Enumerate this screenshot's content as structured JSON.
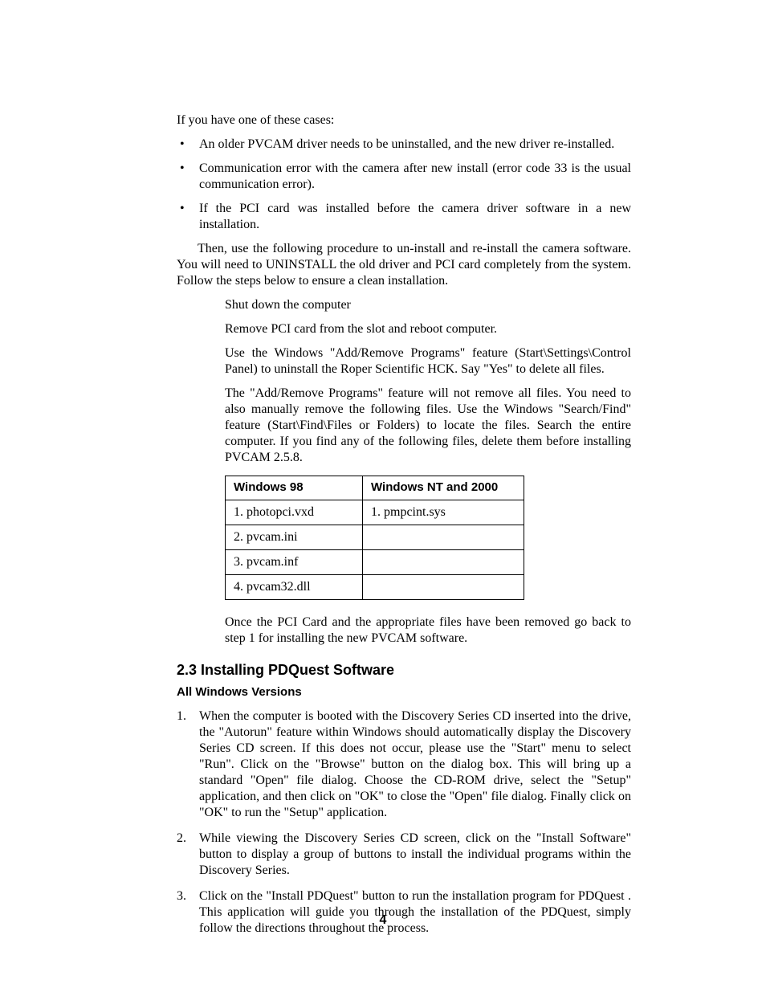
{
  "intro": "If you have one of these cases:",
  "cases": [
    "An older PVCAM driver needs to be uninstalled, and the new driver re-installed.",
    "Communication error with the camera after new install (error code 33 is the usual communication error).",
    "If the PCI card was installed before the camera driver software in a new installation."
  ],
  "then_para": "Then, use the following procedure to un-install and re-install the camera software. You will need to UNINSTALL the old driver and PCI card completely from the system. Follow the steps below to ensure a clean installation.",
  "sub_steps": [
    "Shut down the computer",
    "Remove PCI card from the slot and reboot computer.",
    "Use the Windows \"Add/Remove Programs\" feature (Start\\Settings\\Control Panel) to uninstall the Roper Scientific HCK. Say \"Yes\" to delete all files.",
    "The \"Add/Remove Programs\" feature will not remove all files. You need to also manually remove the following files. Use the Windows \"Search/Find\" feature (Start\\Find\\Files or Folders) to locate the files. Search the entire computer. If you find any of the following files, delete them before installing PVCAM 2.5.8."
  ],
  "table": {
    "headers": [
      "Windows 98",
      "Windows NT and 2000"
    ],
    "col1_rows": [
      "1.  photopci.vxd",
      "2.  pvcam.ini",
      "3.  pvcam.inf",
      "4.  pvcam32.dll"
    ],
    "col2_rows": [
      "1.  pmpcint.sys",
      "",
      "",
      ""
    ]
  },
  "after_table": "Once the PCI Card and the appropriate files have been removed go back to step 1 for installing the new PVCAM software.",
  "section_heading": "2.3  Installing PDQuest Software",
  "subsection_heading": "All Windows Versions",
  "install_steps": [
    "When the computer is booted with the Discovery Series CD inserted into the drive, the \"Autorun\" feature within Windows should automatically display the Discovery Series CD screen. If this does not occur, please use the \"Start\" menu to select \"Run\". Click on the \"Browse\" button on the dialog box. This will bring up a standard \"Open\" file dialog. Choose the CD-ROM drive, select the \"Setup\" application, and then click on \"OK\" to close the \"Open\" file dialog. Finally click on \"OK\" to run the \"Setup\" application.",
    "While viewing the Discovery Series CD screen, click on the \"Install Software\" button to display a group of buttons to install the individual programs within the Discovery Series.",
    "Click on the \"Install PDQuest\" button to run the installation program for PDQuest . This application will guide you through the installation of the PDQuest, simply follow the directions throughout the process."
  ],
  "page_number": "4",
  "colors": {
    "text": "#000000",
    "background": "#ffffff",
    "border": "#000000"
  },
  "fonts": {
    "body_family": "Times New Roman",
    "body_size_pt": 12,
    "heading_family": "Helvetica",
    "section_size_pt": 14,
    "subsection_size_pt": 11
  }
}
